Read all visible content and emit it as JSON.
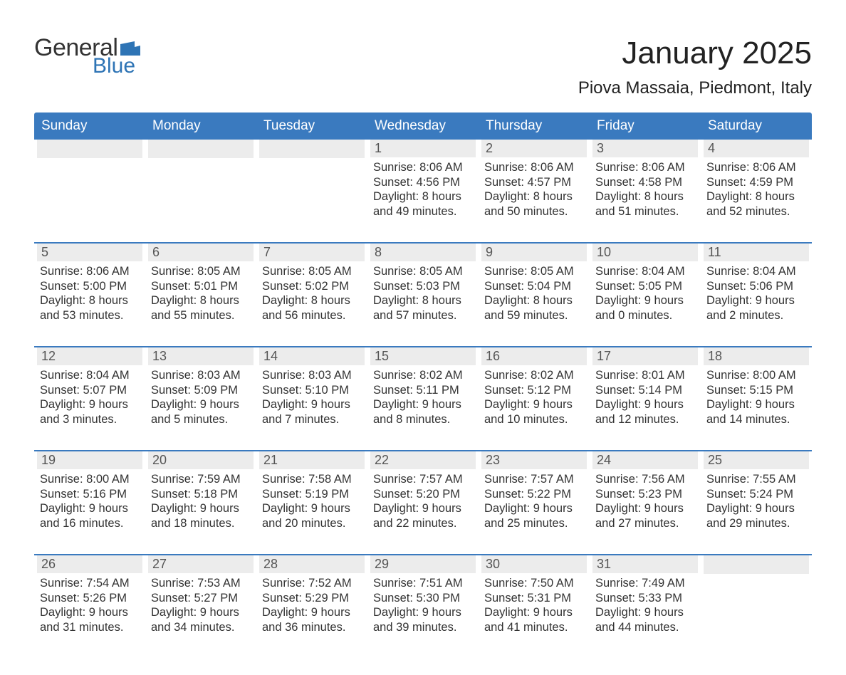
{
  "logo": {
    "text_general": "General",
    "text_blue": "Blue",
    "general_color": "#333333",
    "blue_color": "#2e74b5",
    "flag_color": "#2e74b5"
  },
  "title": "January 2025",
  "location": "Piova Massaia, Piedmont, Italy",
  "colors": {
    "header_bg": "#3a7abf",
    "header_text": "#ffffff",
    "daynum_bg": "#ececec",
    "daynum_text": "#555555",
    "body_text": "#333333",
    "week_border": "#3a7abf",
    "page_bg": "#ffffff"
  },
  "fonts": {
    "title_size": 44,
    "location_size": 24,
    "weekday_size": 19,
    "daynum_size": 18,
    "body_size": 16.5
  },
  "weekdays": [
    "Sunday",
    "Monday",
    "Tuesday",
    "Wednesday",
    "Thursday",
    "Friday",
    "Saturday"
  ],
  "weeks": [
    [
      {
        "blank": true
      },
      {
        "blank": true
      },
      {
        "blank": true
      },
      {
        "day": "1",
        "sunrise": "Sunrise: 8:06 AM",
        "sunset": "Sunset: 4:56 PM",
        "d1": "Daylight: 8 hours",
        "d2": "and 49 minutes."
      },
      {
        "day": "2",
        "sunrise": "Sunrise: 8:06 AM",
        "sunset": "Sunset: 4:57 PM",
        "d1": "Daylight: 8 hours",
        "d2": "and 50 minutes."
      },
      {
        "day": "3",
        "sunrise": "Sunrise: 8:06 AM",
        "sunset": "Sunset: 4:58 PM",
        "d1": "Daylight: 8 hours",
        "d2": "and 51 minutes."
      },
      {
        "day": "4",
        "sunrise": "Sunrise: 8:06 AM",
        "sunset": "Sunset: 4:59 PM",
        "d1": "Daylight: 8 hours",
        "d2": "and 52 minutes."
      }
    ],
    [
      {
        "day": "5",
        "sunrise": "Sunrise: 8:06 AM",
        "sunset": "Sunset: 5:00 PM",
        "d1": "Daylight: 8 hours",
        "d2": "and 53 minutes."
      },
      {
        "day": "6",
        "sunrise": "Sunrise: 8:05 AM",
        "sunset": "Sunset: 5:01 PM",
        "d1": "Daylight: 8 hours",
        "d2": "and 55 minutes."
      },
      {
        "day": "7",
        "sunrise": "Sunrise: 8:05 AM",
        "sunset": "Sunset: 5:02 PM",
        "d1": "Daylight: 8 hours",
        "d2": "and 56 minutes."
      },
      {
        "day": "8",
        "sunrise": "Sunrise: 8:05 AM",
        "sunset": "Sunset: 5:03 PM",
        "d1": "Daylight: 8 hours",
        "d2": "and 57 minutes."
      },
      {
        "day": "9",
        "sunrise": "Sunrise: 8:05 AM",
        "sunset": "Sunset: 5:04 PM",
        "d1": "Daylight: 8 hours",
        "d2": "and 59 minutes."
      },
      {
        "day": "10",
        "sunrise": "Sunrise: 8:04 AM",
        "sunset": "Sunset: 5:05 PM",
        "d1": "Daylight: 9 hours",
        "d2": "and 0 minutes."
      },
      {
        "day": "11",
        "sunrise": "Sunrise: 8:04 AM",
        "sunset": "Sunset: 5:06 PM",
        "d1": "Daylight: 9 hours",
        "d2": "and 2 minutes."
      }
    ],
    [
      {
        "day": "12",
        "sunrise": "Sunrise: 8:04 AM",
        "sunset": "Sunset: 5:07 PM",
        "d1": "Daylight: 9 hours",
        "d2": "and 3 minutes."
      },
      {
        "day": "13",
        "sunrise": "Sunrise: 8:03 AM",
        "sunset": "Sunset: 5:09 PM",
        "d1": "Daylight: 9 hours",
        "d2": "and 5 minutes."
      },
      {
        "day": "14",
        "sunrise": "Sunrise: 8:03 AM",
        "sunset": "Sunset: 5:10 PM",
        "d1": "Daylight: 9 hours",
        "d2": "and 7 minutes."
      },
      {
        "day": "15",
        "sunrise": "Sunrise: 8:02 AM",
        "sunset": "Sunset: 5:11 PM",
        "d1": "Daylight: 9 hours",
        "d2": "and 8 minutes."
      },
      {
        "day": "16",
        "sunrise": "Sunrise: 8:02 AM",
        "sunset": "Sunset: 5:12 PM",
        "d1": "Daylight: 9 hours",
        "d2": "and 10 minutes."
      },
      {
        "day": "17",
        "sunrise": "Sunrise: 8:01 AM",
        "sunset": "Sunset: 5:14 PM",
        "d1": "Daylight: 9 hours",
        "d2": "and 12 minutes."
      },
      {
        "day": "18",
        "sunrise": "Sunrise: 8:00 AM",
        "sunset": "Sunset: 5:15 PM",
        "d1": "Daylight: 9 hours",
        "d2": "and 14 minutes."
      }
    ],
    [
      {
        "day": "19",
        "sunrise": "Sunrise: 8:00 AM",
        "sunset": "Sunset: 5:16 PM",
        "d1": "Daylight: 9 hours",
        "d2": "and 16 minutes."
      },
      {
        "day": "20",
        "sunrise": "Sunrise: 7:59 AM",
        "sunset": "Sunset: 5:18 PM",
        "d1": "Daylight: 9 hours",
        "d2": "and 18 minutes."
      },
      {
        "day": "21",
        "sunrise": "Sunrise: 7:58 AM",
        "sunset": "Sunset: 5:19 PM",
        "d1": "Daylight: 9 hours",
        "d2": "and 20 minutes."
      },
      {
        "day": "22",
        "sunrise": "Sunrise: 7:57 AM",
        "sunset": "Sunset: 5:20 PM",
        "d1": "Daylight: 9 hours",
        "d2": "and 22 minutes."
      },
      {
        "day": "23",
        "sunrise": "Sunrise: 7:57 AM",
        "sunset": "Sunset: 5:22 PM",
        "d1": "Daylight: 9 hours",
        "d2": "and 25 minutes."
      },
      {
        "day": "24",
        "sunrise": "Sunrise: 7:56 AM",
        "sunset": "Sunset: 5:23 PM",
        "d1": "Daylight: 9 hours",
        "d2": "and 27 minutes."
      },
      {
        "day": "25",
        "sunrise": "Sunrise: 7:55 AM",
        "sunset": "Sunset: 5:24 PM",
        "d1": "Daylight: 9 hours",
        "d2": "and 29 minutes."
      }
    ],
    [
      {
        "day": "26",
        "sunrise": "Sunrise: 7:54 AM",
        "sunset": "Sunset: 5:26 PM",
        "d1": "Daylight: 9 hours",
        "d2": "and 31 minutes."
      },
      {
        "day": "27",
        "sunrise": "Sunrise: 7:53 AM",
        "sunset": "Sunset: 5:27 PM",
        "d1": "Daylight: 9 hours",
        "d2": "and 34 minutes."
      },
      {
        "day": "28",
        "sunrise": "Sunrise: 7:52 AM",
        "sunset": "Sunset: 5:29 PM",
        "d1": "Daylight: 9 hours",
        "d2": "and 36 minutes."
      },
      {
        "day": "29",
        "sunrise": "Sunrise: 7:51 AM",
        "sunset": "Sunset: 5:30 PM",
        "d1": "Daylight: 9 hours",
        "d2": "and 39 minutes."
      },
      {
        "day": "30",
        "sunrise": "Sunrise: 7:50 AM",
        "sunset": "Sunset: 5:31 PM",
        "d1": "Daylight: 9 hours",
        "d2": "and 41 minutes."
      },
      {
        "day": "31",
        "sunrise": "Sunrise: 7:49 AM",
        "sunset": "Sunset: 5:33 PM",
        "d1": "Daylight: 9 hours",
        "d2": "and 44 minutes."
      },
      {
        "blank": true
      }
    ]
  ]
}
